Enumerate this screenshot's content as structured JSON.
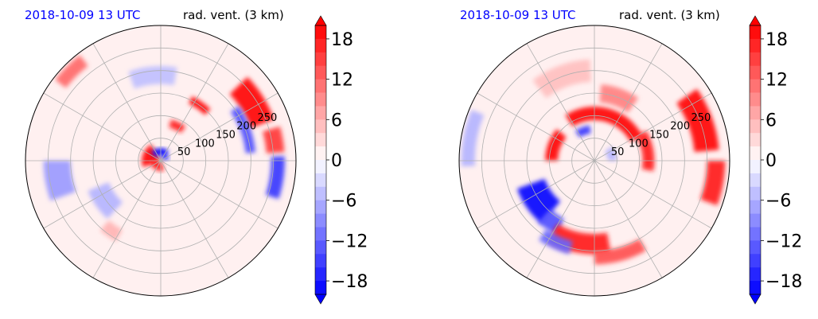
{
  "colors": {
    "time_label": "#0000ff",
    "title": "#000000",
    "cmap_min": "#0000ff",
    "cmap_mid": "#ffffff",
    "cmap_max": "#ff0000",
    "grid": "#b0b0b0"
  },
  "chart_data": [
    {
      "type": "heatmap",
      "projection": "polar",
      "time_label": "2018-10-09 13 UTC",
      "title": "rad. vent. (3 km)",
      "radial_ticks": [
        "50",
        "100",
        "150",
        "200",
        "250"
      ],
      "radial_values": [
        50,
        100,
        150,
        200,
        250
      ],
      "rlim": [
        0,
        300
      ],
      "angular_grid_deg": [
        0,
        30,
        60,
        90,
        120,
        150,
        180,
        210,
        240,
        270,
        300,
        330
      ],
      "grid": true,
      "colorbar": {
        "ticks": [
          "18",
          "12",
          "6",
          "0",
          "−6",
          "−12",
          "−18"
        ],
        "tick_values": [
          18,
          12,
          6,
          0,
          -6,
          -12,
          -18
        ],
        "range": [
          -20,
          20
        ],
        "levels": 20,
        "extend": "both"
      },
      "features": [
        {
          "sign": "pos",
          "r": 22,
          "theta": 160,
          "dr": 40,
          "dtheta": 80,
          "value": 20
        },
        {
          "sign": "pos",
          "r": 10,
          "theta": 230,
          "dr": 26,
          "dtheta": 120,
          "value": 18
        },
        {
          "sign": "neg",
          "r": 20,
          "theta": 95,
          "dr": 16,
          "dtheta": 90,
          "value": -20
        },
        {
          "sign": "neg",
          "r": 12,
          "theta": 40,
          "dr": 14,
          "dtheta": 60,
          "value": -18
        },
        {
          "sign": "pos",
          "r": 85,
          "theta": 65,
          "dr": 18,
          "dtheta": 22,
          "value": 18
        },
        {
          "sign": "pos",
          "r": 150,
          "theta": 55,
          "dr": 18,
          "dtheta": 18,
          "value": 20
        },
        {
          "sign": "pos",
          "r": 240,
          "theta": 32,
          "dr": 55,
          "dtheta": 24,
          "value": 20
        },
        {
          "sign": "pos",
          "r": 255,
          "theta": 10,
          "dr": 40,
          "dtheta": 12,
          "value": 16
        },
        {
          "sign": "neg",
          "r": 260,
          "theta": -8,
          "dr": 30,
          "dtheta": 20,
          "value": -16
        },
        {
          "sign": "neg",
          "r": 200,
          "theta": 20,
          "dr": 22,
          "dtheta": 30,
          "value": -14
        },
        {
          "sign": "neg",
          "r": 230,
          "theta": 190,
          "dr": 60,
          "dtheta": 20,
          "value": -8
        },
        {
          "sign": "neg",
          "r": 150,
          "theta": 215,
          "dr": 50,
          "dtheta": 25,
          "value": -6
        },
        {
          "sign": "pos",
          "r": 190,
          "theta": 235,
          "dr": 30,
          "dtheta": 12,
          "value": 6
        },
        {
          "sign": "neg",
          "r": 190,
          "theta": 95,
          "dr": 40,
          "dtheta": 30,
          "value": -5
        },
        {
          "sign": "pos",
          "r": 280,
          "theta": 135,
          "dr": 30,
          "dtheta": 15,
          "value": 12
        }
      ]
    },
    {
      "type": "heatmap",
      "projection": "polar",
      "time_label": "2018-10-09 13 UTC",
      "title": "rad. vent. (3 km)",
      "radial_ticks": [
        "50",
        "100",
        "150",
        "200",
        "250"
      ],
      "radial_values": [
        50,
        100,
        150,
        200,
        250
      ],
      "rlim": [
        0,
        300
      ],
      "angular_grid_deg": [
        0,
        30,
        60,
        90,
        120,
        150,
        180,
        210,
        240,
        270,
        300,
        330
      ],
      "grid": true,
      "colorbar": {
        "ticks": [
          "18",
          "12",
          "6",
          "0",
          "−6",
          "−12",
          "−18"
        ],
        "tick_values": [
          18,
          12,
          6,
          0,
          -6,
          -12,
          -18
        ],
        "range": [
          -20,
          20
        ],
        "levels": 20,
        "extend": "both"
      },
      "features": [
        {
          "sign": "pos",
          "r": 105,
          "theta": 75,
          "dr": 30,
          "dtheta": 95,
          "value": 20
        },
        {
          "sign": "pos",
          "r": 95,
          "theta": 160,
          "dr": 28,
          "dtheta": 40,
          "value": 20
        },
        {
          "sign": "pos",
          "r": 120,
          "theta": 10,
          "dr": 26,
          "dtheta": 40,
          "value": 18
        },
        {
          "sign": "neg",
          "r": 70,
          "theta": 110,
          "dr": 18,
          "dtheta": 25,
          "value": -16
        },
        {
          "sign": "pos",
          "r": 250,
          "theta": 20,
          "dr": 55,
          "dtheta": 30,
          "value": 20
        },
        {
          "sign": "pos",
          "r": 270,
          "theta": -10,
          "dr": 40,
          "dtheta": 20,
          "value": 18
        },
        {
          "sign": "neg",
          "r": 150,
          "theta": 215,
          "dr": 65,
          "dtheta": 30,
          "value": -20
        },
        {
          "sign": "neg",
          "r": 165,
          "theta": 235,
          "dr": 40,
          "dtheta": 15,
          "value": -14
        },
        {
          "sign": "pos",
          "r": 185,
          "theta": 260,
          "dr": 45,
          "dtheta": 40,
          "value": 18
        },
        {
          "sign": "pos",
          "r": 215,
          "theta": 285,
          "dr": 30,
          "dtheta": 30,
          "value": 14
        },
        {
          "sign": "neg",
          "r": 200,
          "theta": 245,
          "dr": 30,
          "dtheta": 20,
          "value": -12
        },
        {
          "sign": "pos",
          "r": 150,
          "theta": 70,
          "dr": 40,
          "dtheta": 30,
          "value": 10
        },
        {
          "sign": "neg",
          "r": 280,
          "theta": 170,
          "dr": 30,
          "dtheta": 25,
          "value": -6
        },
        {
          "sign": "pos",
          "r": 200,
          "theta": 110,
          "dr": 50,
          "dtheta": 35,
          "value": 5
        },
        {
          "sign": "neg",
          "r": 40,
          "theta": 20,
          "dr": 20,
          "dtheta": 40,
          "value": -6
        }
      ]
    }
  ]
}
